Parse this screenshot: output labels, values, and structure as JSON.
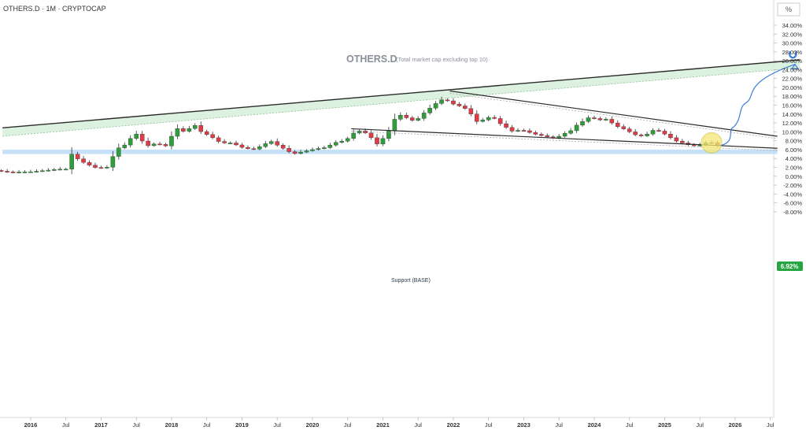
{
  "header": {
    "symbol_line": "OTHERS.D · 1M · CRYPTOCAP",
    "axis_unit": "%"
  },
  "chart_title": {
    "main": "OTHERS.D",
    "sub": "(Total market cap excluding top 10)"
  },
  "price_label": "6.92%",
  "support_label": "Support (BASE)",
  "colors": {
    "up": "#2e9d3a",
    "down": "#e03b47",
    "band_green": "#d8efdc",
    "support_blue": "#bcdcf7",
    "highlight": "#f5e873",
    "arrow": "#3d7fd6",
    "price_tag": "#27a540"
  },
  "chart_data": {
    "type": "candlestick",
    "title": "OTHERS.D (Total market cap excluding top 10)",
    "timeframe": "1M",
    "ylim": [
      -9,
      35
    ],
    "y_ticks": [
      -8,
      -6,
      -4,
      -2,
      0,
      2,
      4,
      6,
      8,
      10,
      12,
      14,
      16,
      18,
      20,
      22,
      24,
      26,
      28,
      30,
      32,
      34
    ],
    "y_tick_suffix": "%",
    "x_ticks": [
      {
        "t": 2016.0,
        "label": "2016"
      },
      {
        "t": 2016.5,
        "label": "Jul"
      },
      {
        "t": 2017.0,
        "label": "2017"
      },
      {
        "t": 2017.5,
        "label": "Jul"
      },
      {
        "t": 2018.0,
        "label": "2018"
      },
      {
        "t": 2018.5,
        "label": "Jul"
      },
      {
        "t": 2019.0,
        "label": "2019"
      },
      {
        "t": 2019.5,
        "label": "Jul"
      },
      {
        "t": 2020.0,
        "label": "2020"
      },
      {
        "t": 2020.5,
        "label": "Jul"
      },
      {
        "t": 2021.0,
        "label": "2021"
      },
      {
        "t": 2021.5,
        "label": "Jul"
      },
      {
        "t": 2022.0,
        "label": "2022"
      },
      {
        "t": 2022.5,
        "label": "Jul"
      },
      {
        "t": 2023.0,
        "label": "2023"
      },
      {
        "t": 2023.5,
        "label": "Jul"
      },
      {
        "t": 2024.0,
        "label": "2024"
      },
      {
        "t": 2024.5,
        "label": "Jul"
      },
      {
        "t": 2025.0,
        "label": "2025"
      },
      {
        "t": 2025.5,
        "label": "Jul"
      },
      {
        "t": 2026.0,
        "label": "2026"
      },
      {
        "t": 2026.5,
        "label": "Jul"
      }
    ],
    "close_path": [
      [
        2015.5,
        1.3
      ],
      [
        2015.7,
        0.9
      ],
      [
        2016.0,
        1.0
      ],
      [
        2016.2,
        1.3
      ],
      [
        2016.4,
        1.6
      ],
      [
        2016.55,
        1.6
      ],
      [
        2016.58,
        5.0
      ],
      [
        2016.7,
        3.5
      ],
      [
        2016.9,
        2.0
      ],
      [
        2017.05,
        1.8
      ],
      [
        2017.12,
        2.3
      ],
      [
        2017.2,
        6.0
      ],
      [
        2017.3,
        6.8
      ],
      [
        2017.4,
        7.5
      ],
      [
        2017.45,
        10.5
      ],
      [
        2017.55,
        8.5
      ],
      [
        2017.65,
        6.8
      ],
      [
        2017.8,
        7.5
      ],
      [
        2017.9,
        6.5
      ],
      [
        2017.95,
        7.5
      ],
      [
        2018.05,
        10.5
      ],
      [
        2018.12,
        11.0
      ],
      [
        2018.2,
        9.5
      ],
      [
        2018.3,
        12.0
      ],
      [
        2018.42,
        10.0
      ],
      [
        2018.55,
        9.0
      ],
      [
        2018.7,
        7.5
      ],
      [
        2018.85,
        7.5
      ],
      [
        2019.0,
        6.5
      ],
      [
        2019.15,
        6.0
      ],
      [
        2019.3,
        7.0
      ],
      [
        2019.4,
        8.0
      ],
      [
        2019.5,
        7.0
      ],
      [
        2019.62,
        6.0
      ],
      [
        2019.72,
        5.0
      ],
      [
        2019.85,
        5.5
      ],
      [
        2020.0,
        6.0
      ],
      [
        2020.1,
        6.3
      ],
      [
        2020.2,
        6.5
      ],
      [
        2020.3,
        7.5
      ],
      [
        2020.45,
        8.0
      ],
      [
        2020.55,
        9.0
      ],
      [
        2020.62,
        10.5
      ],
      [
        2020.7,
        10.0
      ],
      [
        2020.8,
        9.5
      ],
      [
        2020.9,
        7.0
      ],
      [
        2021.0,
        8.5
      ],
      [
        2021.1,
        10.5
      ],
      [
        2021.2,
        14.0
      ],
      [
        2021.3,
        13.5
      ],
      [
        2021.4,
        12.5
      ],
      [
        2021.5,
        13.0
      ],
      [
        2021.6,
        14.5
      ],
      [
        2021.72,
        16.0
      ],
      [
        2021.8,
        17.0
      ],
      [
        2021.88,
        17.5
      ],
      [
        2021.95,
        16.5
      ],
      [
        2022.05,
        16.0
      ],
      [
        2022.15,
        15.5
      ],
      [
        2022.25,
        14.0
      ],
      [
        2022.35,
        12.0
      ],
      [
        2022.45,
        13.0
      ],
      [
        2022.55,
        13.5
      ],
      [
        2022.65,
        12.0
      ],
      [
        2022.75,
        11.0
      ],
      [
        2022.85,
        10.0
      ],
      [
        2022.95,
        10.5
      ],
      [
        2023.05,
        10.0
      ],
      [
        2023.15,
        9.5
      ],
      [
        2023.3,
        9.0
      ],
      [
        2023.45,
        8.5
      ],
      [
        2023.55,
        9.5
      ],
      [
        2023.65,
        10.0
      ],
      [
        2023.75,
        11.5
      ],
      [
        2023.85,
        12.5
      ],
      [
        2023.95,
        13.5
      ],
      [
        2024.05,
        12.5
      ],
      [
        2024.15,
        13.0
      ],
      [
        2024.25,
        12.0
      ],
      [
        2024.35,
        11.0
      ],
      [
        2024.45,
        10.5
      ],
      [
        2024.55,
        9.5
      ],
      [
        2024.65,
        9.0
      ],
      [
        2024.75,
        9.5
      ],
      [
        2024.85,
        10.5
      ],
      [
        2024.95,
        10.0
      ],
      [
        2025.05,
        9.0
      ],
      [
        2025.15,
        8.0
      ],
      [
        2025.25,
        7.5
      ],
      [
        2025.35,
        7.0
      ],
      [
        2025.45,
        6.8
      ],
      [
        2025.55,
        7.3
      ],
      [
        2025.62,
        7.8
      ],
      [
        2025.68,
        7.5
      ],
      [
        2025.75,
        6.92
      ]
    ],
    "upper_trendline": [
      [
        2015.6,
        10.9
      ],
      [
        2026.92,
        26.2
      ]
    ],
    "upper_band_lower_edge": [
      [
        2015.6,
        9.0
      ],
      [
        2026.92,
        24.4
      ]
    ],
    "descending_trendline": [
      [
        2021.95,
        19.2
      ],
      [
        2026.6,
        9.0
      ]
    ],
    "lower_trendline": [
      [
        2020.55,
        10.7
      ],
      [
        2026.6,
        6.3
      ]
    ],
    "support_zone": [
      5.0,
      6.0
    ],
    "projection_target": 25.2,
    "current_value": 6.92
  }
}
